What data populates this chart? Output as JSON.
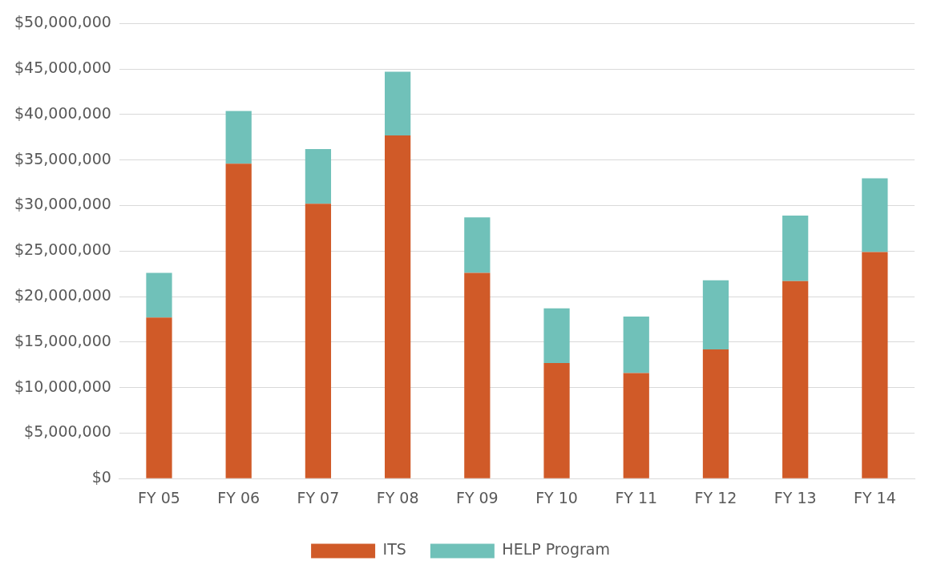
{
  "chart_data": {
    "type": "bar",
    "stacked": true,
    "categories": [
      "FY 05",
      "FY 06",
      "FY 07",
      "FY 08",
      "FY 09",
      "FY 10",
      "FY 11",
      "FY 12",
      "FY 13",
      "FY 14"
    ],
    "series": [
      {
        "name": "ITS",
        "color": "#d05a28",
        "values": [
          17700000,
          34600000,
          30200000,
          37700000,
          22600000,
          12700000,
          11600000,
          14200000,
          21700000,
          24900000
        ]
      },
      {
        "name": "HELP Program",
        "color": "#70c1b9",
        "values": [
          4900000,
          5800000,
          6000000,
          7000000,
          6100000,
          6000000,
          6200000,
          7600000,
          7200000,
          8100000
        ]
      }
    ],
    "ylim": [
      0,
      50000000
    ],
    "yticks": [
      {
        "value": 0,
        "label": "$0"
      },
      {
        "value": 5000000,
        "label": "$5,000,000"
      },
      {
        "value": 10000000,
        "label": "$10,000,000"
      },
      {
        "value": 15000000,
        "label": "$15,000,000"
      },
      {
        "value": 20000000,
        "label": "$20,000,000"
      },
      {
        "value": 25000000,
        "label": "$25,000,000"
      },
      {
        "value": 30000000,
        "label": "$30,000,000"
      },
      {
        "value": 35000000,
        "label": "$35,000,000"
      },
      {
        "value": 40000000,
        "label": "$40,000,000"
      },
      {
        "value": 45000000,
        "label": "$45,000,000"
      },
      {
        "value": 50000000,
        "label": "$50,000,000"
      }
    ],
    "grid": "y",
    "legend": "bottom"
  }
}
